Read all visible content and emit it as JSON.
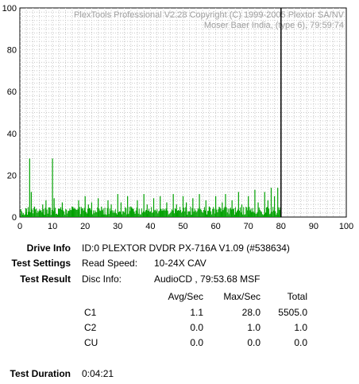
{
  "chart_data": {
    "type": "bar",
    "x_ticks": [
      "0",
      "10",
      "20",
      "30",
      "40",
      "50",
      "60",
      "70",
      "80",
      "90",
      "100"
    ],
    "y_ticks": [
      "0",
      "20",
      "40",
      "60",
      "80",
      "100"
    ],
    "xlim": [
      0,
      100
    ],
    "ylim": [
      0,
      100
    ],
    "watermark_line1": "PlexTools Professional V2.28 Copyright (C) 1999-2005 Plextor SA/NV",
    "watermark_line2": "Moser Baer India, (type 6), 79:59:74",
    "end_marker_x": 80,
    "bar_color": "#00a000",
    "grid": true,
    "spikes": [
      {
        "x": 1.0,
        "y": 2
      },
      {
        "x": 2.0,
        "y": 4
      },
      {
        "x": 3.0,
        "y": 28
      },
      {
        "x": 3.5,
        "y": 12
      },
      {
        "x": 4.5,
        "y": 5
      },
      {
        "x": 6.0,
        "y": 3
      },
      {
        "x": 7.0,
        "y": 6
      },
      {
        "x": 8.0,
        "y": 8
      },
      {
        "x": 9.0,
        "y": 3
      },
      {
        "x": 10.0,
        "y": 28
      },
      {
        "x": 10.5,
        "y": 9
      },
      {
        "x": 12.0,
        "y": 4
      },
      {
        "x": 13.0,
        "y": 7
      },
      {
        "x": 15.0,
        "y": 3
      },
      {
        "x": 16.0,
        "y": 5
      },
      {
        "x": 18.0,
        "y": 8
      },
      {
        "x": 19.0,
        "y": 4
      },
      {
        "x": 20.0,
        "y": 10
      },
      {
        "x": 21.0,
        "y": 6
      },
      {
        "x": 22.0,
        "y": 7
      },
      {
        "x": 24.0,
        "y": 9
      },
      {
        "x": 25.0,
        "y": 5
      },
      {
        "x": 27.0,
        "y": 8
      },
      {
        "x": 28.0,
        "y": 6
      },
      {
        "x": 30.0,
        "y": 11
      },
      {
        "x": 31.0,
        "y": 7
      },
      {
        "x": 33.0,
        "y": 10
      },
      {
        "x": 34.0,
        "y": 5
      },
      {
        "x": 36.0,
        "y": 8
      },
      {
        "x": 38.0,
        "y": 11
      },
      {
        "x": 39.0,
        "y": 6
      },
      {
        "x": 41.0,
        "y": 9
      },
      {
        "x": 43.0,
        "y": 10
      },
      {
        "x": 45.0,
        "y": 7
      },
      {
        "x": 47.0,
        "y": 11
      },
      {
        "x": 48.0,
        "y": 6
      },
      {
        "x": 50.0,
        "y": 10
      },
      {
        "x": 51.0,
        "y": 7
      },
      {
        "x": 53.0,
        "y": 9
      },
      {
        "x": 55.0,
        "y": 11
      },
      {
        "x": 57.0,
        "y": 8
      },
      {
        "x": 58.0,
        "y": 5
      },
      {
        "x": 60.0,
        "y": 10
      },
      {
        "x": 62.0,
        "y": 7
      },
      {
        "x": 63.0,
        "y": 11
      },
      {
        "x": 65.0,
        "y": 8
      },
      {
        "x": 67.0,
        "y": 12
      },
      {
        "x": 68.0,
        "y": 6
      },
      {
        "x": 70.0,
        "y": 10
      },
      {
        "x": 72.0,
        "y": 13
      },
      {
        "x": 73.0,
        "y": 7
      },
      {
        "x": 75.0,
        "y": 12
      },
      {
        "x": 76.0,
        "y": 8
      },
      {
        "x": 77.0,
        "y": 14
      },
      {
        "x": 78.0,
        "y": 10
      },
      {
        "x": 79.0,
        "y": 14
      }
    ]
  },
  "info": {
    "drive_info_label": "Drive Info",
    "drive_info_value": "ID:0 PLEXTOR DVDR PX-716A V1.09 (#538634)",
    "test_settings_label": "Test Settings",
    "read_speed_label": "Read Speed:",
    "read_speed_value": "10-24X CAV",
    "test_result_label": "Test Result",
    "disc_info_label": "Disc Info:",
    "disc_info_value": "AudioCD , 79:53.68 MSF",
    "col_avg": "Avg/Sec",
    "col_max": "Max/Sec",
    "col_total": "Total",
    "rows": [
      {
        "name": "C1",
        "avg": "1.1",
        "max": "28.0",
        "total": "5505.0"
      },
      {
        "name": "C2",
        "avg": "0.0",
        "max": "1.0",
        "total": "1.0"
      },
      {
        "name": "CU",
        "avg": "0.0",
        "max": "0.0",
        "total": "0.0"
      }
    ],
    "duration_label": "Test Duration",
    "duration_value": "0:04:21"
  }
}
